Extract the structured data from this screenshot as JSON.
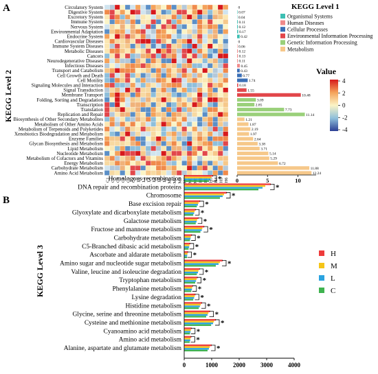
{
  "chart_data": [
    {
      "type": "heatmap",
      "panel_label": "A",
      "ylabel": "KEGG Level 2",
      "legend_title": "KEGG Level 1",
      "legend_items": [
        {
          "name": "Organismal Systems",
          "color": "#3dbfb3"
        },
        {
          "name": "Human Diseases",
          "color": "#f08a8a"
        },
        {
          "name": "Cellular Processes",
          "color": "#3b6fb6"
        },
        {
          "name": "Environmental Information Processing",
          "color": "#e2474b"
        },
        {
          "name": "Genetic Information Processing",
          "color": "#9ad07a"
        },
        {
          "name": "Metabolism",
          "color": "#f6c88a"
        }
      ],
      "colorbar_title": "Value",
      "colorbar_ticks": [
        "4",
        "2",
        "0",
        "-2",
        "-4"
      ],
      "samples": [
        "C1",
        "C2",
        "C3",
        "C4",
        "C5",
        "C6",
        "L1",
        "L2",
        "L3",
        "L4",
        "L5",
        "L6",
        "M1",
        "M2",
        "M3",
        "M4",
        "M5",
        "M6",
        "H1",
        "H2",
        "H3",
        "H4",
        "H5",
        "H6"
      ],
      "rows": [
        {
          "name": "Circulatory System",
          "group": "Organismal Systems",
          "value": "0"
        },
        {
          "name": "Digestive System",
          "group": "Organismal Systems",
          "value": "0.07"
        },
        {
          "name": "Excretory System",
          "group": "Organismal Systems",
          "value": "0.04"
        },
        {
          "name": "Immune System",
          "group": "Organismal Systems",
          "value": "0.11"
        },
        {
          "name": "Nervous System",
          "group": "Organismal Systems",
          "value": "0.12"
        },
        {
          "name": "Environmental Adaptation",
          "group": "Organismal Systems",
          "value": "0.17"
        },
        {
          "name": "Endocrine System",
          "group": "Organismal Systems",
          "value": "0.42"
        },
        {
          "name": "Cardiovascular Diseases",
          "group": "Human Diseases",
          "value": "0"
        },
        {
          "name": "Immune System Diseases",
          "group": "Human Diseases",
          "value": "0.06"
        },
        {
          "name": "Metabolic Diseases",
          "group": "Human Diseases",
          "value": "0.12"
        },
        {
          "name": "Cancers",
          "group": "Human Diseases",
          "value": "0.13"
        },
        {
          "name": "Neurodegenerative Diseases",
          "group": "Human Diseases",
          "value": "0.11"
        },
        {
          "name": "Infectious Diseases",
          "group": "Human Diseases",
          "value": "0.45"
        },
        {
          "name": "Transport and Catabolism",
          "group": "Cellular Processes",
          "value": "0.43"
        },
        {
          "name": "Cell Growth and Death",
          "group": "Cellular Processes",
          "value": "0.77"
        },
        {
          "name": "Cell Motility",
          "group": "Cellular Processes",
          "value": "1.74"
        },
        {
          "name": "Signaling Molecules and Interaction",
          "group": "Environmental Information Processing",
          "value": "0.18"
        },
        {
          "name": "Signal Transduction",
          "group": "Environmental Information Processing",
          "value": "1.55"
        },
        {
          "name": "Membrane Transport",
          "group": "Environmental Information Processing",
          "value": "10.48"
        },
        {
          "name": "Folding, Sorting and Degradation",
          "group": "Genetic Information Processing",
          "value": "3.09"
        },
        {
          "name": "Transcription",
          "group": "Genetic Information Processing",
          "value": "2.85"
        },
        {
          "name": "Translation",
          "group": "Genetic Information Processing",
          "value": "7.73"
        },
        {
          "name": "Replication and Repair",
          "group": "Genetic Information Processing",
          "value": "11.14"
        },
        {
          "name": "Biosynthesis of Other Secondary Metabolites",
          "group": "Metabolism",
          "value": "1.21"
        },
        {
          "name": "Metabolism of Other Amino Acids",
          "group": "Metabolism",
          "value": "1.87"
        },
        {
          "name": "Metabolism of Terpenoids and Polyketides",
          "group": "Metabolism",
          "value": "2.19"
        },
        {
          "name": "Xenobiotics Biodegradation and Metabolism",
          "group": "Metabolism",
          "value": "1.97"
        },
        {
          "name": "Enzyme Families",
          "group": "Metabolism",
          "value": "2.64"
        },
        {
          "name": "Glycan Biosynthesis and Metabolism",
          "group": "Metabolism",
          "value": "3.38"
        },
        {
          "name": "Lipid Metabolism",
          "group": "Metabolism",
          "value": "3.71"
        },
        {
          "name": "Nucleotide Metabolism",
          "group": "Metabolism",
          "value": "5.14"
        },
        {
          "name": "Metabolism of Cofactors and Vitamins",
          "group": "Metabolism",
          "value": "5.29"
        },
        {
          "name": "Energy Metabolism",
          "group": "Metabolism",
          "value": "6.72"
        },
        {
          "name": "Carbohydrate Metabolism",
          "group": "Metabolism",
          "value": "11.88"
        },
        {
          "name": "Amino Acid Metabolism",
          "group": "Metabolism",
          "value": "12.24"
        }
      ],
      "bar_axis": {
        "min": 0,
        "max": 13,
        "ticks": [
          "0",
          "5",
          "10"
        ]
      }
    },
    {
      "type": "bar",
      "orientation": "horizontal",
      "panel_label": "B",
      "ylabel": "KEGG Level 3",
      "xlim": [
        0,
        4000
      ],
      "xticks": [
        "0",
        "1000",
        "2000",
        "3000",
        "4000"
      ],
      "significance_marker": "*",
      "legend": {
        "placement": "right"
      },
      "series": [
        {
          "name": "H",
          "color": "#ee3b3b"
        },
        {
          "name": "M",
          "color": "#f5c518"
        },
        {
          "name": "L",
          "color": "#2ba3e0"
        },
        {
          "name": "C",
          "color": "#3fb34f"
        }
      ],
      "categories": [
        "Homologous recombination",
        "DNA repair and recombination proteins",
        "Chromosome",
        "Base excision repair",
        "Glyoxylate and dicarboxylate metabolism",
        "Galactose metabolism",
        "Fructose and mannose metabolism",
        "Carbohydrate metabolism",
        "C5-Branched dibasic acid metabolism",
        "Ascorbate and aldarate metabolism",
        "Amino sugar and nucleotide sugar metabolism",
        "Valine, leucine and isoleucine degradation",
        "Tryptophan metabolism",
        "Phenylalanine metabolism",
        "Lysine degradation",
        "Histidine metabolism",
        "Glycine, serine and threonine metabolism",
        "Cysteine and methionine metabolism",
        "Cyanoamino acid metabolism",
        "Amino acid metabolism",
        "Alanine, aspartate and glutamate metabolism"
      ],
      "values": {
        "H": [
          1050,
          3150,
          1550,
          580,
          420,
          520,
          730,
          280,
          220,
          140,
          1400,
          570,
          490,
          320,
          410,
          650,
          940,
          1150,
          270,
          260,
          1000
        ],
        "M": [
          980,
          2950,
          1450,
          520,
          380,
          470,
          660,
          240,
          190,
          120,
          1300,
          520,
          450,
          290,
          380,
          600,
          880,
          1080,
          240,
          230,
          930
        ],
        "L": [
          960,
          2850,
          1400,
          500,
          360,
          450,
          640,
          230,
          180,
          110,
          1250,
          500,
          430,
          280,
          360,
          570,
          850,
          1050,
          230,
          220,
          900
        ],
        "C": [
          900,
          2700,
          1300,
          460,
          330,
          420,
          590,
          210,
          160,
          100,
          1150,
          460,
          400,
          260,
          330,
          530,
          800,
          980,
          210,
          200,
          850
        ]
      }
    }
  ]
}
